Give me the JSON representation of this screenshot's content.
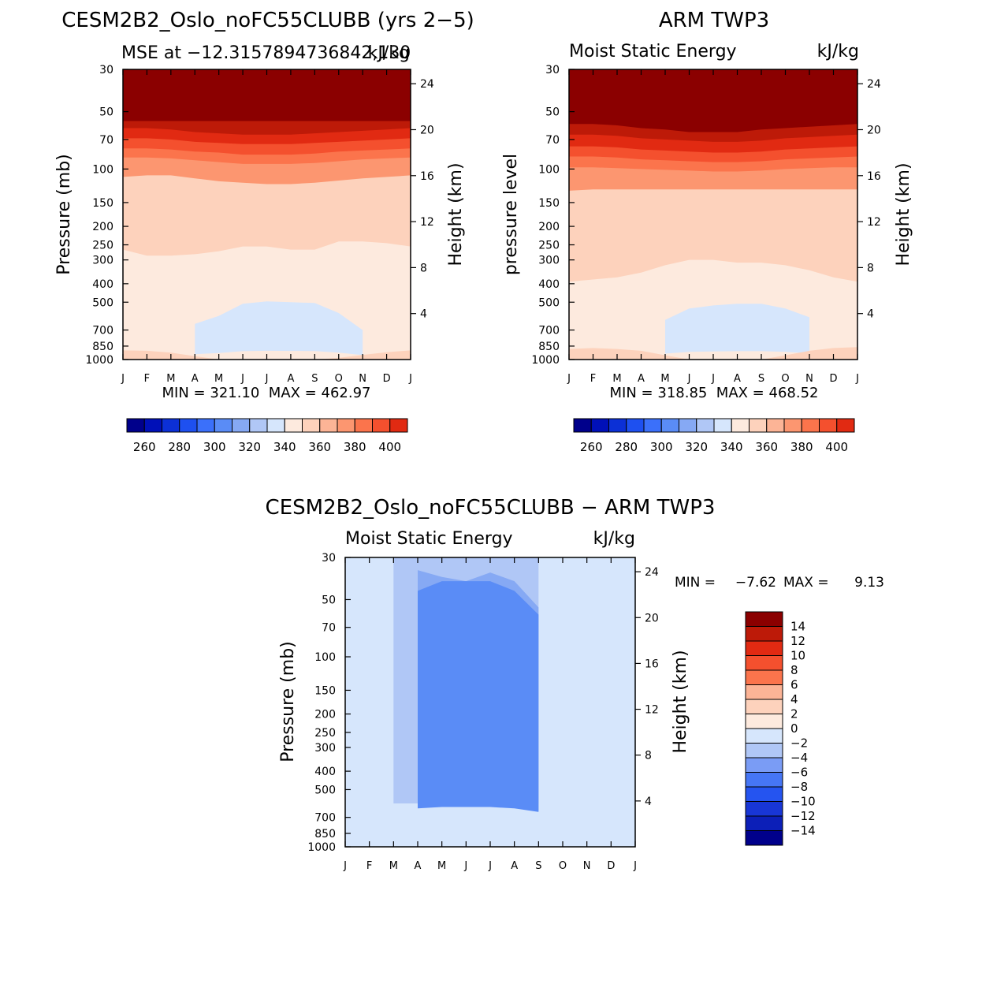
{
  "chart_data": [
    {
      "type": "heatmap",
      "title": "CESM2B2_Oslo_noFC55CLUBB (yrs 2−5)",
      "subtitle_left": "MSE at −12.3157894736842,130",
      "subtitle_right": "kJ/kg",
      "ylabel": "Pressure (mb)",
      "ylabel_right": "Height (km)",
      "x_ticks": [
        "J",
        "F",
        "M",
        "A",
        "M",
        "J",
        "J",
        "A",
        "S",
        "O",
        "N",
        "D",
        "J"
      ],
      "y_ticks": [
        30,
        50,
        70,
        100,
        150,
        200,
        250,
        300,
        400,
        500,
        700,
        850,
        1000
      ],
      "y_right_ticks": [
        24,
        20,
        16,
        12,
        8,
        4
      ],
      "ylim": [
        30,
        1000
      ],
      "stats": "MIN = 321.10  MAX = 462.97",
      "min": 321.1,
      "max": 462.97,
      "colorbar": {
        "orientation": "horizontal",
        "levels": [
          250,
          260,
          270,
          280,
          290,
          300,
          310,
          320,
          330,
          340,
          350,
          360,
          370,
          380,
          390,
          400
        ],
        "labels": [
          "260",
          "280",
          "300",
          "320",
          "340",
          "360",
          "380",
          "400"
        ],
        "colors": [
          "#00008b",
          "#0010b8",
          "#0c30d6",
          "#1e50f0",
          "#3b70fa",
          "#5a8cf6",
          "#86a9f4",
          "#b0c7f6",
          "#d6e6fc",
          "#fdeade",
          "#fdd2bc",
          "#fcb496",
          "#fc9670",
          "#fb744c",
          "#f4502e",
          "#e12a12",
          "#bd1a08",
          "#8b0000"
        ]
      },
      "bands": [
        {
          "color": "#8b0000",
          "boundary": null
        },
        {
          "color": "#bd1a08",
          "boundary": [
            56,
            56,
            56,
            56,
            56,
            56,
            56,
            56,
            56,
            56,
            56,
            56,
            56
          ]
        },
        {
          "color": "#e12a12",
          "boundary": [
            61,
            61,
            62,
            64,
            65,
            66,
            66,
            66,
            65,
            64,
            63,
            62,
            61
          ]
        },
        {
          "color": "#f4502e",
          "boundary": [
            69,
            69,
            70,
            72,
            73,
            74,
            74,
            74,
            73,
            72,
            71,
            70,
            69
          ]
        },
        {
          "color": "#fb744c",
          "boundary": [
            78,
            78,
            79,
            81,
            82,
            84,
            84,
            84,
            83,
            81,
            80,
            79,
            78
          ]
        },
        {
          "color": "#fc9670",
          "boundary": [
            87,
            87,
            88,
            90,
            92,
            94,
            94,
            94,
            93,
            91,
            89,
            88,
            87
          ]
        },
        {
          "color": "#fdd2bc",
          "boundary": [
            110,
            108,
            108,
            112,
            116,
            118,
            120,
            120,
            118,
            115,
            112,
            110,
            108
          ]
        },
        {
          "color": "#fdeade",
          "boundary": [
            265,
            285,
            285,
            280,
            270,
            255,
            255,
            265,
            265,
            240,
            240,
            245,
            255
          ]
        },
        {
          "color": "#d6e6fc",
          "boundary": [
            null,
            null,
            null,
            650,
            590,
            510,
            495,
            500,
            505,
            570,
            700,
            null,
            null
          ]
        },
        {
          "color": "#fdeade",
          "boundary": [
            null,
            null,
            null,
            null,
            null,
            null,
            null,
            null,
            null,
            null,
            null,
            null,
            null
          ]
        },
        {
          "color": "#fdd2bc",
          "boundary": [
            895,
            900,
            920,
            960,
            1000,
            1000,
            1000,
            1000,
            1000,
            980,
            945,
            915,
            895
          ]
        }
      ]
    },
    {
      "type": "heatmap",
      "title": "ARM TWP3",
      "subtitle_left": "Moist Static Energy",
      "subtitle_right": "kJ/kg",
      "ylabel": "pressure level",
      "ylabel_right": "Height (km)",
      "x_ticks": [
        "J",
        "F",
        "M",
        "A",
        "M",
        "J",
        "J",
        "A",
        "S",
        "O",
        "N",
        "D",
        "J"
      ],
      "y_ticks": [
        30,
        50,
        70,
        100,
        150,
        200,
        250,
        300,
        400,
        500,
        700,
        850,
        1000
      ],
      "y_right_ticks": [
        24,
        20,
        16,
        12,
        8,
        4
      ],
      "ylim": [
        30,
        1000
      ],
      "stats": "MIN = 318.85  MAX = 468.52",
      "min": 318.85,
      "max": 468.52,
      "colorbar": {
        "orientation": "horizontal",
        "levels": [
          250,
          260,
          270,
          280,
          290,
          300,
          310,
          320,
          330,
          340,
          350,
          360,
          370,
          380,
          390,
          400
        ],
        "labels": [
          "260",
          "280",
          "300",
          "320",
          "340",
          "360",
          "380",
          "400"
        ],
        "colors": [
          "#00008b",
          "#0010b8",
          "#0c30d6",
          "#1e50f0",
          "#3b70fa",
          "#5a8cf6",
          "#86a9f4",
          "#b0c7f6",
          "#d6e6fc",
          "#fdeade",
          "#fdd2bc",
          "#fcb496",
          "#fc9670",
          "#fb744c",
          "#f4502e",
          "#e12a12",
          "#bd1a08",
          "#8b0000"
        ]
      },
      "bands": [
        {
          "color": "#8b0000",
          "boundary": null
        },
        {
          "color": "#bd1a08",
          "boundary": [
            58,
            58,
            59,
            61,
            62,
            64,
            64,
            64,
            62,
            61,
            60,
            59,
            58
          ]
        },
        {
          "color": "#e12a12",
          "boundary": [
            66,
            66,
            67,
            69,
            70,
            71,
            72,
            72,
            71,
            69,
            68,
            67,
            66
          ]
        },
        {
          "color": "#f4502e",
          "boundary": [
            76,
            76,
            77,
            79,
            80,
            81,
            82,
            82,
            81,
            79,
            78,
            77,
            76
          ]
        },
        {
          "color": "#fb744c",
          "boundary": [
            86,
            86,
            87,
            89,
            90,
            91,
            92,
            92,
            91,
            89,
            88,
            87,
            86
          ]
        },
        {
          "color": "#fc9670",
          "boundary": [
            98,
            98,
            99,
            100,
            101,
            102,
            103,
            103,
            102,
            100,
            99,
            98,
            98
          ]
        },
        {
          "color": "#fdd2bc",
          "boundary": [
            130,
            128,
            128,
            128,
            128,
            128,
            128,
            128,
            128,
            128,
            128,
            128,
            128
          ]
        },
        {
          "color": "#fdeade",
          "boundary": [
            390,
            380,
            370,
            350,
            320,
            300,
            300,
            310,
            310,
            320,
            340,
            370,
            390
          ]
        },
        {
          "color": "#d6e6fc",
          "boundary": [
            null,
            null,
            null,
            null,
            620,
            540,
            520,
            510,
            510,
            540,
            600,
            null,
            null
          ]
        },
        {
          "color": "#b0c7f6",
          "boundary": [
            null,
            null,
            null,
            null,
            null,
            null,
            null,
            null,
            null,
            null,
            null,
            null,
            null
          ]
        },
        {
          "color": "#fdeade",
          "boundary": [
            null,
            null,
            null,
            null,
            null,
            null,
            null,
            null,
            null,
            null,
            null,
            null,
            null
          ]
        },
        {
          "color": "#fdd2bc",
          "boundary": [
            880,
            870,
            880,
            900,
            950,
            1000,
            1000,
            1000,
            1000,
            950,
            900,
            870,
            860
          ]
        }
      ]
    },
    {
      "type": "heatmap",
      "title": "CESM2B2_Oslo_noFC55CLUBB − ARM TWP3",
      "subtitle_left": "Moist Static Energy",
      "subtitle_right": "kJ/kg",
      "ylabel": "Pressure (mb)",
      "ylabel_right": "Height (km)",
      "x_ticks": [
        "J",
        "F",
        "M",
        "A",
        "M",
        "J",
        "J",
        "A",
        "S",
        "O",
        "N",
        "D",
        "J"
      ],
      "y_ticks": [
        30,
        50,
        70,
        100,
        150,
        200,
        250,
        300,
        400,
        500,
        700,
        850,
        1000
      ],
      "y_right_ticks": [
        24,
        20,
        16,
        12,
        8,
        4
      ],
      "ylim": [
        30,
        1000
      ],
      "stats_label_min": "MIN =",
      "stats_min": "−7.62",
      "stats_label_max": "MAX =",
      "stats_max": "9.13",
      "min": -7.62,
      "max": 9.13,
      "colorbar": {
        "orientation": "vertical",
        "levels": [
          -14,
          -12,
          -10,
          -8,
          -6,
          -4,
          -2,
          0,
          2,
          4,
          6,
          8,
          10,
          12,
          14
        ],
        "labels": [
          "14",
          "12",
          "10",
          "8",
          "6",
          "4",
          "2",
          "0",
          "−2",
          "−4",
          "−6",
          "−8",
          "−10",
          "−12",
          "−14"
        ],
        "colors": [
          "#00008b",
          "#0c1fb8",
          "#1836d6",
          "#2554f0",
          "#4676f5",
          "#7a9cf5",
          "#b0c7f6",
          "#d6e6fc",
          "#fdeade",
          "#fdd2bc",
          "#fcb496",
          "#fb744c",
          "#f4502e",
          "#e12a12",
          "#bd1a08",
          "#8b0000"
        ]
      },
      "bands": [
        {
          "color": "#d6e6fc",
          "boundary": null
        },
        {
          "color": "#b0c7f6",
          "boundary": [
            null,
            null,
            30,
            30,
            30,
            30,
            30,
            30,
            30,
            null,
            null,
            null,
            null
          ]
        },
        {
          "color": "#86a9f4",
          "boundary": [
            null,
            null,
            null,
            35,
            38,
            40,
            36,
            40,
            55,
            null,
            null,
            null,
            null
          ]
        },
        {
          "color": "#5a8cf6",
          "boundary": [
            null,
            null,
            null,
            45,
            40,
            40,
            40,
            45,
            60,
            null,
            null,
            null,
            null
          ]
        },
        {
          "color": "#fdeade",
          "boundary": [
            null,
            null,
            null,
            null,
            null,
            null,
            null,
            null,
            null,
            null,
            null,
            null,
            null
          ]
        }
      ]
    }
  ]
}
